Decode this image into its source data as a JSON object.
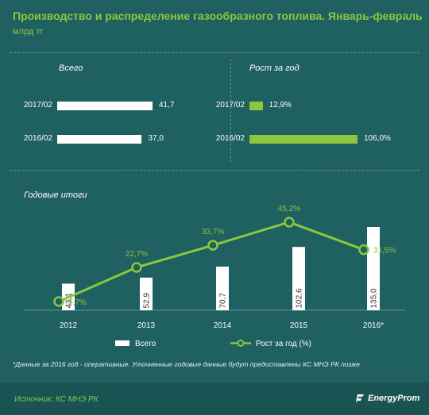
{
  "header": {
    "title": "Производство и распределение газообразного топлива. Январь-февраль",
    "subtitle": "млрд тг"
  },
  "colors": {
    "background": "#1f6061",
    "accent_green": "#8dc63f",
    "bar_white": "#ffffff"
  },
  "chart_data": [
    {
      "type": "bar",
      "orientation": "horizontal",
      "title": "Всего",
      "categories": [
        "2017/02",
        "2016/02"
      ],
      "values": [
        41.7,
        37.0
      ],
      "value_labels": [
        "41,7",
        "37,0"
      ],
      "color": "#ffffff"
    },
    {
      "type": "bar",
      "orientation": "horizontal",
      "title": "Рост за год",
      "categories": [
        "2017/02",
        "2016/02"
      ],
      "values": [
        12.9,
        106.0
      ],
      "value_labels": [
        "12,9%",
        "106,0%"
      ],
      "color": "#8dc63f"
    },
    {
      "type": "bar+line",
      "title": "Годовые итоги",
      "categories": [
        "2012",
        "2013",
        "2014",
        "2015",
        "2016*"
      ],
      "series": [
        {
          "name": "Всего",
          "kind": "bar",
          "values": [
            43.1,
            52.9,
            70.7,
            102.6,
            135.0
          ],
          "value_labels": [
            "43,1",
            "52,9",
            "70,7",
            "102,6",
            "135,0"
          ]
        },
        {
          "name": "Рост за год (%)",
          "kind": "line",
          "values": [
            5.7,
            22.7,
            33.7,
            45.2,
            31.5
          ],
          "value_labels": [
            "5,7%",
            "22,7%",
            "33,7%",
            "45,2%",
            "31,5%"
          ]
        }
      ],
      "legend": [
        "Всего",
        "Рост за год (%)"
      ]
    }
  ],
  "note": "*Данные за 2016 год - оперативные. Уточненные годовые данные будут предоставлены КС МНЭ РК позже",
  "footer": {
    "source": "Источник: КС МНЭ РК",
    "brand": "EnergyProm"
  }
}
